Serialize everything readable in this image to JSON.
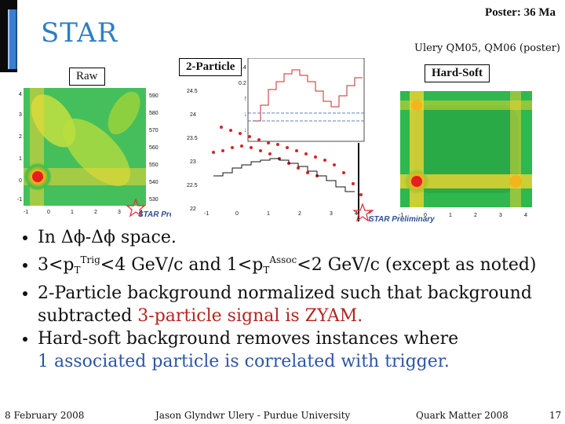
{
  "header": {
    "logo_text": "STAR",
    "poster_note": "Poster: 36 Ma",
    "reference": "Ulery QM05, QM06 (poster)"
  },
  "plots": {
    "raw_label": "Raw",
    "two_particle_label": "2-Particle",
    "hard_soft_label": "Hard-Soft",
    "preliminary_text": "STAR Preliminary",
    "x_ticks": [
      "-1",
      "0",
      "1",
      "2",
      "3",
      "4"
    ],
    "y_ticks": [
      "-1",
      "0",
      "1",
      "2",
      "3",
      "4"
    ],
    "mid_y_ticks": [
      "24.5",
      "24",
      "23.5",
      "23",
      "22.5",
      "22"
    ],
    "mid_top_ticks": [
      "0.4",
      "0.2",
      "0.2",
      "0.1",
      "0.1"
    ],
    "left_z_ticks": [
      "590",
      "580",
      "570",
      "560",
      "550",
      "540",
      "530"
    ],
    "colors": {
      "logo": "#2d7ec4",
      "accent_blue": "#2c55a4",
      "accent_red": "#b3251f",
      "preliminary": "#2e4f9a"
    }
  },
  "bullets": [
    {
      "text": "In Δϕ-Δϕ space."
    },
    {
      "prefix": "3<p",
      "sub1": "T",
      "sup1": "Trig",
      "mid": "<4 GeV/c and 1<p",
      "sub2": "T",
      "sup2": "Assoc",
      "suffix": "<2 GeV/c (except as noted)"
    },
    {
      "line1": "2-Particle background normalized such that background",
      "line2_plain": "subtracted ",
      "line2_red": "3-particle signal is ZYAM."
    },
    {
      "line1": "Hard-soft background removes instances where",
      "line2_blue": "1 associated particle is correlated with trigger."
    }
  ],
  "footer": {
    "date": "8 February 2008",
    "author": "Jason Glyndwr Ulery - Purdue University",
    "conference": "Quark Matter 2008",
    "page": "17"
  }
}
